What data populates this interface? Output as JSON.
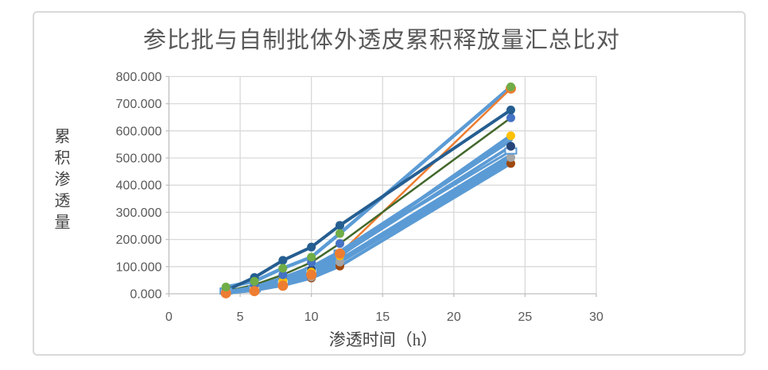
{
  "chart_data": {
    "type": "line",
    "title": "参比批与自制批体外透皮累积释放量汇总比对",
    "xlabel": "渗透时间（h）",
    "ylabel": "累积渗透量",
    "xlim": [
      0,
      30
    ],
    "ylim": [
      0,
      800
    ],
    "x_ticks": [
      "0",
      "5",
      "10",
      "15",
      "20",
      "25",
      "30"
    ],
    "y_ticks": [
      "0.000",
      "100.000",
      "200.000",
      "300.000",
      "400.000",
      "500.000",
      "600.000",
      "700.000",
      "800.000"
    ],
    "grid": true,
    "legend": "none",
    "x": [
      4,
      6,
      8,
      10,
      12,
      24
    ],
    "series": [
      {
        "id": "series-1",
        "line_color": "#5B9BD5",
        "line_width": 4.5,
        "marker": "circle",
        "marker_color": "#70AD47",
        "marker_size": 5.5,
        "values": [
          25,
          46,
          94,
          135,
          222,
          762
        ]
      },
      {
        "id": "series-2",
        "line_color": "#ED7D31",
        "line_width": 2.5,
        "marker": "circle",
        "marker_color": "#ED7D31",
        "marker_size": 6.5,
        "values": [
          2,
          10,
          30,
          70,
          148,
          756
        ]
      },
      {
        "id": "series-3",
        "line_color": "#255E91",
        "line_width": 4,
        "marker": "circle",
        "marker_color": "#255E91",
        "marker_size": 5.5,
        "values": [
          12,
          60,
          123,
          172,
          252,
          677
        ]
      },
      {
        "id": "series-4",
        "line_color": "#43682B",
        "line_width": 2.5,
        "marker": "circle",
        "marker_color": "#4472C4",
        "marker_size": 5.5,
        "values": [
          9,
          33,
          70,
          116,
          185,
          648
        ]
      },
      {
        "id": "series-5",
        "line_color": "#5B9BD5",
        "line_width": 4.5,
        "marker": "circle",
        "marker_color": "#FFC000",
        "marker_size": 5.5,
        "values": [
          5,
          21,
          48,
          80,
          140,
          582
        ]
      },
      {
        "id": "series-6",
        "line_color": "#5B9BD5",
        "line_width": 4.5,
        "marker": "none",
        "marker_color": "#5B9BD5",
        "marker_size": 0,
        "values": [
          6,
          24,
          58,
          98,
          155,
          565
        ]
      },
      {
        "id": "series-7",
        "line_color": "#5B9BD5",
        "line_width": 4,
        "marker": "circle",
        "marker_color": "#264478",
        "marker_size": 5.5,
        "values": [
          5,
          22,
          50,
          88,
          142,
          543
        ]
      },
      {
        "id": "series-8",
        "line_color": "#5B9BD5",
        "line_width": 3,
        "marker": "dash",
        "marker_color": "#5B9BD5",
        "marker_size": 7,
        "values": [
          10,
          18,
          45,
          85,
          150,
          526
        ]
      },
      {
        "id": "series-9",
        "line_color": "#5B9BD5",
        "line_width": 4.5,
        "marker": "none",
        "marker_color": "#5B9BD5",
        "marker_size": 0,
        "values": [
          4,
          16,
          42,
          75,
          125,
          510
        ]
      },
      {
        "id": "series-10",
        "line_color": "#5B9BD5",
        "line_width": 4,
        "marker": "circle",
        "marker_color": "#A5A5A5",
        "marker_size": 5.5,
        "values": [
          4,
          15,
          40,
          62,
          117,
          502
        ]
      },
      {
        "id": "series-11",
        "line_color": "#5B9BD5",
        "line_width": 4.5,
        "marker": "none",
        "marker_color": "#5B9BD5",
        "marker_size": 0,
        "values": [
          3,
          14,
          38,
          68,
          118,
          490
        ]
      },
      {
        "id": "series-12",
        "line_color": "#5B9BD5",
        "line_width": 4,
        "marker": "circle",
        "marker_color": "#9E480E",
        "marker_size": 5.5,
        "values": [
          3,
          13,
          31,
          58,
          102,
          480
        ]
      }
    ]
  },
  "style": {
    "grid_color": "#d9d9d9",
    "axis_color": "#bfbfbf",
    "tick_text_color": "#595959",
    "frame_border_color": "#d9d9d9",
    "background": "#ffffff"
  }
}
